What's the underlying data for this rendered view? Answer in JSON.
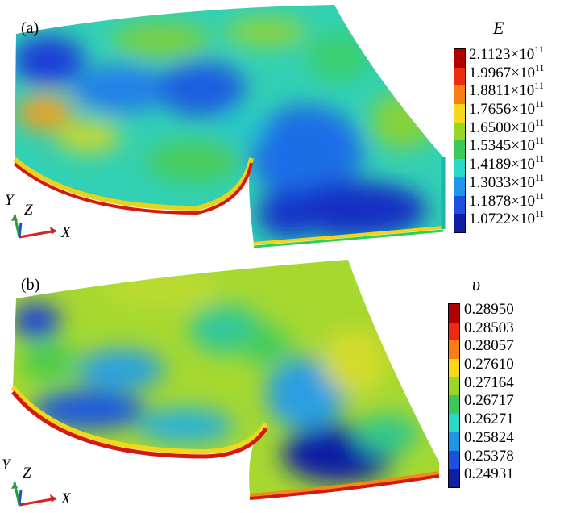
{
  "panel_a": {
    "label": "(a)",
    "legend_title": "E",
    "exponent": "11",
    "ticks": [
      "2.1123×10",
      "1.9967×10",
      "1.8811×10",
      "1.7656×10",
      "1.6500×10",
      "1.5345×10",
      "1.4189×10",
      "1.3033×10",
      "1.1878×10",
      "1.0722×10"
    ],
    "axes": {
      "y": "Y",
      "z": "Z",
      "x": "X"
    }
  },
  "panel_b": {
    "label": "(b)",
    "legend_title": "υ",
    "ticks": [
      "0.28950",
      "0.28503",
      "0.28057",
      "0.27610",
      "0.27164",
      "0.26717",
      "0.26271",
      "0.25824",
      "0.25378",
      "0.24931"
    ],
    "axes": {
      "y": "Y",
      "z": "Z",
      "x": "X"
    }
  },
  "colormap": [
    "#b00000",
    "#ee2a12",
    "#f87f14",
    "#f8d81c",
    "#9ad52a",
    "#3ec85a",
    "#29d9c9",
    "#1f96e8",
    "#1d4fe0",
    "#101ea4"
  ]
}
